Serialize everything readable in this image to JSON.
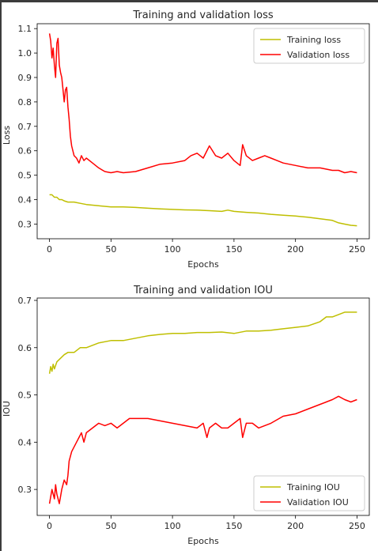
{
  "colors": {
    "training": "#bfbf00",
    "validation": "#ff0000"
  },
  "chart_data": [
    {
      "type": "line",
      "title": "Training and validation loss",
      "xlabel": "Epochs",
      "ylabel": "Loss",
      "xlim": [
        -10,
        260
      ],
      "ylim": [
        0.24,
        1.12
      ],
      "xticks": [
        0,
        50,
        100,
        150,
        200,
        250
      ],
      "yticks": [
        0.3,
        0.4,
        0.5,
        0.6,
        0.7,
        0.8,
        0.9,
        1.0,
        1.1
      ],
      "ytick_labels": [
        "0.3",
        "0.4",
        "0.5",
        "0.6",
        "0.7",
        "0.8",
        "0.9",
        "1.0",
        "1.1"
      ],
      "legend": "top-right",
      "grid": false,
      "series": [
        {
          "name": "Training loss",
          "color": "#bfbf00",
          "points": [
            [
              0,
              0.42
            ],
            [
              2,
              0.42
            ],
            [
              4,
              0.41
            ],
            [
              6,
              0.41
            ],
            [
              8,
              0.4
            ],
            [
              10,
              0.4
            ],
            [
              12,
              0.395
            ],
            [
              15,
              0.39
            ],
            [
              20,
              0.39
            ],
            [
              25,
              0.385
            ],
            [
              30,
              0.38
            ],
            [
              40,
              0.375
            ],
            [
              50,
              0.37
            ],
            [
              60,
              0.37
            ],
            [
              70,
              0.368
            ],
            [
              80,
              0.365
            ],
            [
              90,
              0.362
            ],
            [
              100,
              0.36
            ],
            [
              110,
              0.358
            ],
            [
              120,
              0.357
            ],
            [
              130,
              0.355
            ],
            [
              140,
              0.352
            ],
            [
              145,
              0.357
            ],
            [
              150,
              0.352
            ],
            [
              160,
              0.348
            ],
            [
              170,
              0.345
            ],
            [
              180,
              0.34
            ],
            [
              190,
              0.336
            ],
            [
              200,
              0.333
            ],
            [
              210,
              0.328
            ],
            [
              220,
              0.322
            ],
            [
              230,
              0.315
            ],
            [
              235,
              0.305
            ],
            [
              240,
              0.3
            ],
            [
              245,
              0.295
            ],
            [
              250,
              0.293
            ]
          ]
        },
        {
          "name": "Validation loss",
          "color": "#ff0000",
          "points": [
            [
              0,
              1.08
            ],
            [
              1,
              1.05
            ],
            [
              2,
              0.98
            ],
            [
              3,
              1.02
            ],
            [
              4,
              0.95
            ],
            [
              5,
              0.9
            ],
            [
              6,
              1.04
            ],
            [
              7,
              1.06
            ],
            [
              8,
              0.95
            ],
            [
              9,
              0.92
            ],
            [
              10,
              0.9
            ],
            [
              11,
              0.85
            ],
            [
              12,
              0.8
            ],
            [
              13,
              0.85
            ],
            [
              14,
              0.86
            ],
            [
              15,
              0.78
            ],
            [
              16,
              0.73
            ],
            [
              17,
              0.66
            ],
            [
              18,
              0.62
            ],
            [
              20,
              0.58
            ],
            [
              22,
              0.57
            ],
            [
              24,
              0.55
            ],
            [
              26,
              0.58
            ],
            [
              28,
              0.56
            ],
            [
              30,
              0.57
            ],
            [
              35,
              0.55
            ],
            [
              40,
              0.53
            ],
            [
              45,
              0.515
            ],
            [
              50,
              0.51
            ],
            [
              55,
              0.515
            ],
            [
              60,
              0.51
            ],
            [
              70,
              0.515
            ],
            [
              80,
              0.53
            ],
            [
              90,
              0.545
            ],
            [
              100,
              0.55
            ],
            [
              110,
              0.56
            ],
            [
              115,
              0.58
            ],
            [
              120,
              0.59
            ],
            [
              125,
              0.57
            ],
            [
              130,
              0.62
            ],
            [
              135,
              0.58
            ],
            [
              140,
              0.57
            ],
            [
              145,
              0.59
            ],
            [
              150,
              0.56
            ],
            [
              155,
              0.54
            ],
            [
              157,
              0.625
            ],
            [
              160,
              0.58
            ],
            [
              165,
              0.56
            ],
            [
              170,
              0.57
            ],
            [
              175,
              0.58
            ],
            [
              180,
              0.57
            ],
            [
              185,
              0.56
            ],
            [
              190,
              0.55
            ],
            [
              200,
              0.54
            ],
            [
              210,
              0.53
            ],
            [
              220,
              0.53
            ],
            [
              230,
              0.52
            ],
            [
              235,
              0.52
            ],
            [
              240,
              0.51
            ],
            [
              245,
              0.515
            ],
            [
              250,
              0.51
            ]
          ]
        }
      ]
    },
    {
      "type": "line",
      "title": "Training and validation IOU",
      "xlabel": "Epochs",
      "ylabel": "IOU",
      "xlim": [
        -10,
        260
      ],
      "ylim": [
        0.245,
        0.705
      ],
      "xticks": [
        0,
        50,
        100,
        150,
        200,
        250
      ],
      "yticks": [
        0.3,
        0.4,
        0.5,
        0.6,
        0.7
      ],
      "ytick_labels": [
        "0.3",
        "0.4",
        "0.5",
        "0.6",
        "0.7"
      ],
      "legend": "bottom-right",
      "grid": false,
      "series": [
        {
          "name": "Training IOU",
          "color": "#bfbf00",
          "points": [
            [
              0,
              0.545
            ],
            [
              1,
              0.56
            ],
            [
              2,
              0.55
            ],
            [
              3,
              0.565
            ],
            [
              4,
              0.555
            ],
            [
              6,
              0.57
            ],
            [
              8,
              0.575
            ],
            [
              10,
              0.58
            ],
            [
              12,
              0.585
            ],
            [
              15,
              0.59
            ],
            [
              20,
              0.59
            ],
            [
              25,
              0.6
            ],
            [
              30,
              0.6
            ],
            [
              40,
              0.61
            ],
            [
              50,
              0.615
            ],
            [
              60,
              0.615
            ],
            [
              70,
              0.62
            ],
            [
              80,
              0.625
            ],
            [
              90,
              0.628
            ],
            [
              100,
              0.63
            ],
            [
              110,
              0.63
            ],
            [
              120,
              0.632
            ],
            [
              130,
              0.632
            ],
            [
              140,
              0.633
            ],
            [
              150,
              0.63
            ],
            [
              160,
              0.635
            ],
            [
              170,
              0.635
            ],
            [
              180,
              0.637
            ],
            [
              190,
              0.64
            ],
            [
              200,
              0.643
            ],
            [
              210,
              0.646
            ],
            [
              220,
              0.655
            ],
            [
              225,
              0.665
            ],
            [
              230,
              0.665
            ],
            [
              235,
              0.67
            ],
            [
              240,
              0.675
            ],
            [
              245,
              0.675
            ],
            [
              250,
              0.675
            ]
          ]
        },
        {
          "name": "Validation IOU",
          "color": "#ff0000",
          "points": [
            [
              0,
              0.27
            ],
            [
              2,
              0.3
            ],
            [
              4,
              0.28
            ],
            [
              5,
              0.31
            ],
            [
              6,
              0.29
            ],
            [
              8,
              0.27
            ],
            [
              10,
              0.3
            ],
            [
              12,
              0.32
            ],
            [
              14,
              0.31
            ],
            [
              15,
              0.33
            ],
            [
              16,
              0.36
            ],
            [
              18,
              0.38
            ],
            [
              20,
              0.39
            ],
            [
              22,
              0.4
            ],
            [
              24,
              0.41
            ],
            [
              26,
              0.42
            ],
            [
              28,
              0.4
            ],
            [
              30,
              0.42
            ],
            [
              35,
              0.43
            ],
            [
              40,
              0.44
            ],
            [
              45,
              0.435
            ],
            [
              50,
              0.44
            ],
            [
              55,
              0.43
            ],
            [
              60,
              0.44
            ],
            [
              65,
              0.45
            ],
            [
              70,
              0.45
            ],
            [
              80,
              0.45
            ],
            [
              90,
              0.445
            ],
            [
              100,
              0.44
            ],
            [
              110,
              0.435
            ],
            [
              120,
              0.43
            ],
            [
              125,
              0.44
            ],
            [
              128,
              0.41
            ],
            [
              130,
              0.43
            ],
            [
              135,
              0.44
            ],
            [
              140,
              0.43
            ],
            [
              145,
              0.43
            ],
            [
              150,
              0.44
            ],
            [
              155,
              0.45
            ],
            [
              157,
              0.41
            ],
            [
              160,
              0.44
            ],
            [
              165,
              0.44
            ],
            [
              170,
              0.43
            ],
            [
              180,
              0.44
            ],
            [
              190,
              0.455
            ],
            [
              200,
              0.46
            ],
            [
              210,
              0.47
            ],
            [
              220,
              0.48
            ],
            [
              225,
              0.485
            ],
            [
              230,
              0.49
            ],
            [
              235,
              0.497
            ],
            [
              240,
              0.49
            ],
            [
              245,
              0.485
            ],
            [
              250,
              0.49
            ]
          ]
        }
      ]
    }
  ]
}
